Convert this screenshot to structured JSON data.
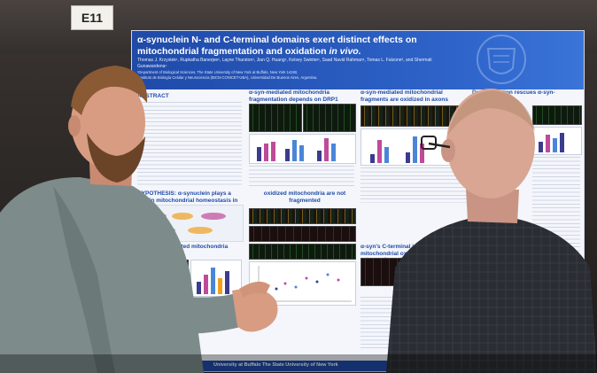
{
  "booth": {
    "number": "E11"
  },
  "poster": {
    "title_line1": "α-synuclein N- and C-terminal domains exert distinct effects on",
    "title_line2_main": "mitochondrial fragmentation and oxidation ",
    "title_line2_em": "in vivo.",
    "authors": "Thomas J. Krzystek¹, Rupkatha Banerjee¹, Layne Thurston¹, Jian Q. Huang¹, Kelsey Swinter¹, Saad Navid Rahman¹, Tomas L. Falzone², and Shermali Gunawardena¹",
    "affiliation_1": "¹Department of Biological Sciences, The State University of New York at Buffalo, New York 14260,",
    "affiliation_2": "²Instituto de Biología Celular y Neurociencia (IBCN-CONICET-UBA), Universidad De Buenos Aires, Argentina.",
    "sections": {
      "abstract": "ABSTRACT",
      "fragmentation": "α-syn-mediated mitochondria fragmentation depends on DRP1",
      "oxidized": "α-syn-mediated mitochondrial fragments are oxidized in axons",
      "rescue": "Drp1 inhibition rescues α-syn-mediated",
      "hypothesis": "HYPOTHESIS: α-synuclein plays a role in mitochondrial homeostasis in axons",
      "not_fragmented": "oxidized mitochondria are not fragmented",
      "causes": "causes fragmented mitochondria",
      "essential": "α-syn's C-terminal is essential for mitochondrial oxidation and the retrograde motility bias"
    },
    "footer": "University at Buffalo  The State University of New York"
  },
  "colors": {
    "poster_header": "#1f4aa8",
    "poster_bg": "#f4f6fb",
    "bar_series_1": "#3b3b8f",
    "bar_series_2": "#c04a9a",
    "bar_series_3": "#4a86d8"
  }
}
